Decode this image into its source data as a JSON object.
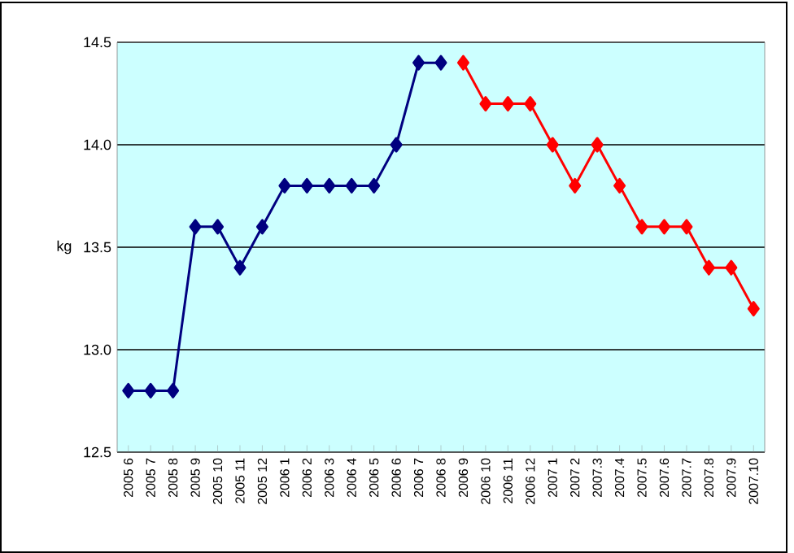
{
  "chart_data": {
    "type": "line",
    "ylabel": "kg",
    "categories": [
      "2005 6",
      "2005 7",
      "2005 8",
      "2005 9",
      "2005 10",
      "2005 11",
      "2005 12",
      "2006 1",
      "2006 2",
      "2006 3",
      "2006 4",
      "2006 5",
      "2006 6",
      "2006 7",
      "2006 8",
      "2006 9",
      "2006 10",
      "2006 11",
      "2006 12",
      "2007 1",
      "2007 2",
      "2007.3",
      "2007.4",
      "2007.5",
      "2007.6",
      "2007.7",
      "2007.8",
      "2007.9",
      "2007.10"
    ],
    "series": [
      {
        "color": "#000080",
        "values": [
          12.8,
          12.8,
          12.8,
          13.6,
          13.6,
          13.4,
          13.6,
          13.8,
          13.8,
          13.8,
          13.8,
          13.8,
          14.0,
          14.4,
          14.4,
          null,
          null,
          null,
          null,
          null,
          null,
          null,
          null,
          null,
          null,
          null,
          null,
          null,
          null
        ]
      },
      {
        "color": "#ff0000",
        "values": [
          null,
          null,
          null,
          null,
          null,
          null,
          null,
          null,
          null,
          null,
          null,
          null,
          null,
          null,
          null,
          14.4,
          14.2,
          14.2,
          14.2,
          14.0,
          13.8,
          14.0,
          13.8,
          13.6,
          13.6,
          13.6,
          13.4,
          13.4,
          13.2
        ]
      }
    ],
    "ylim": [
      12.5,
      14.5
    ],
    "yticks": [
      {
        "value": 12.5,
        "label": "12.5"
      },
      {
        "value": 13.0,
        "label": "13.0"
      },
      {
        "value": 13.5,
        "label": "13.5"
      },
      {
        "value": 14.0,
        "label": "14.0"
      },
      {
        "value": 14.5,
        "label": "14.5"
      }
    ],
    "grid": "y",
    "marker": "diamond",
    "line_style": "solid"
  }
}
